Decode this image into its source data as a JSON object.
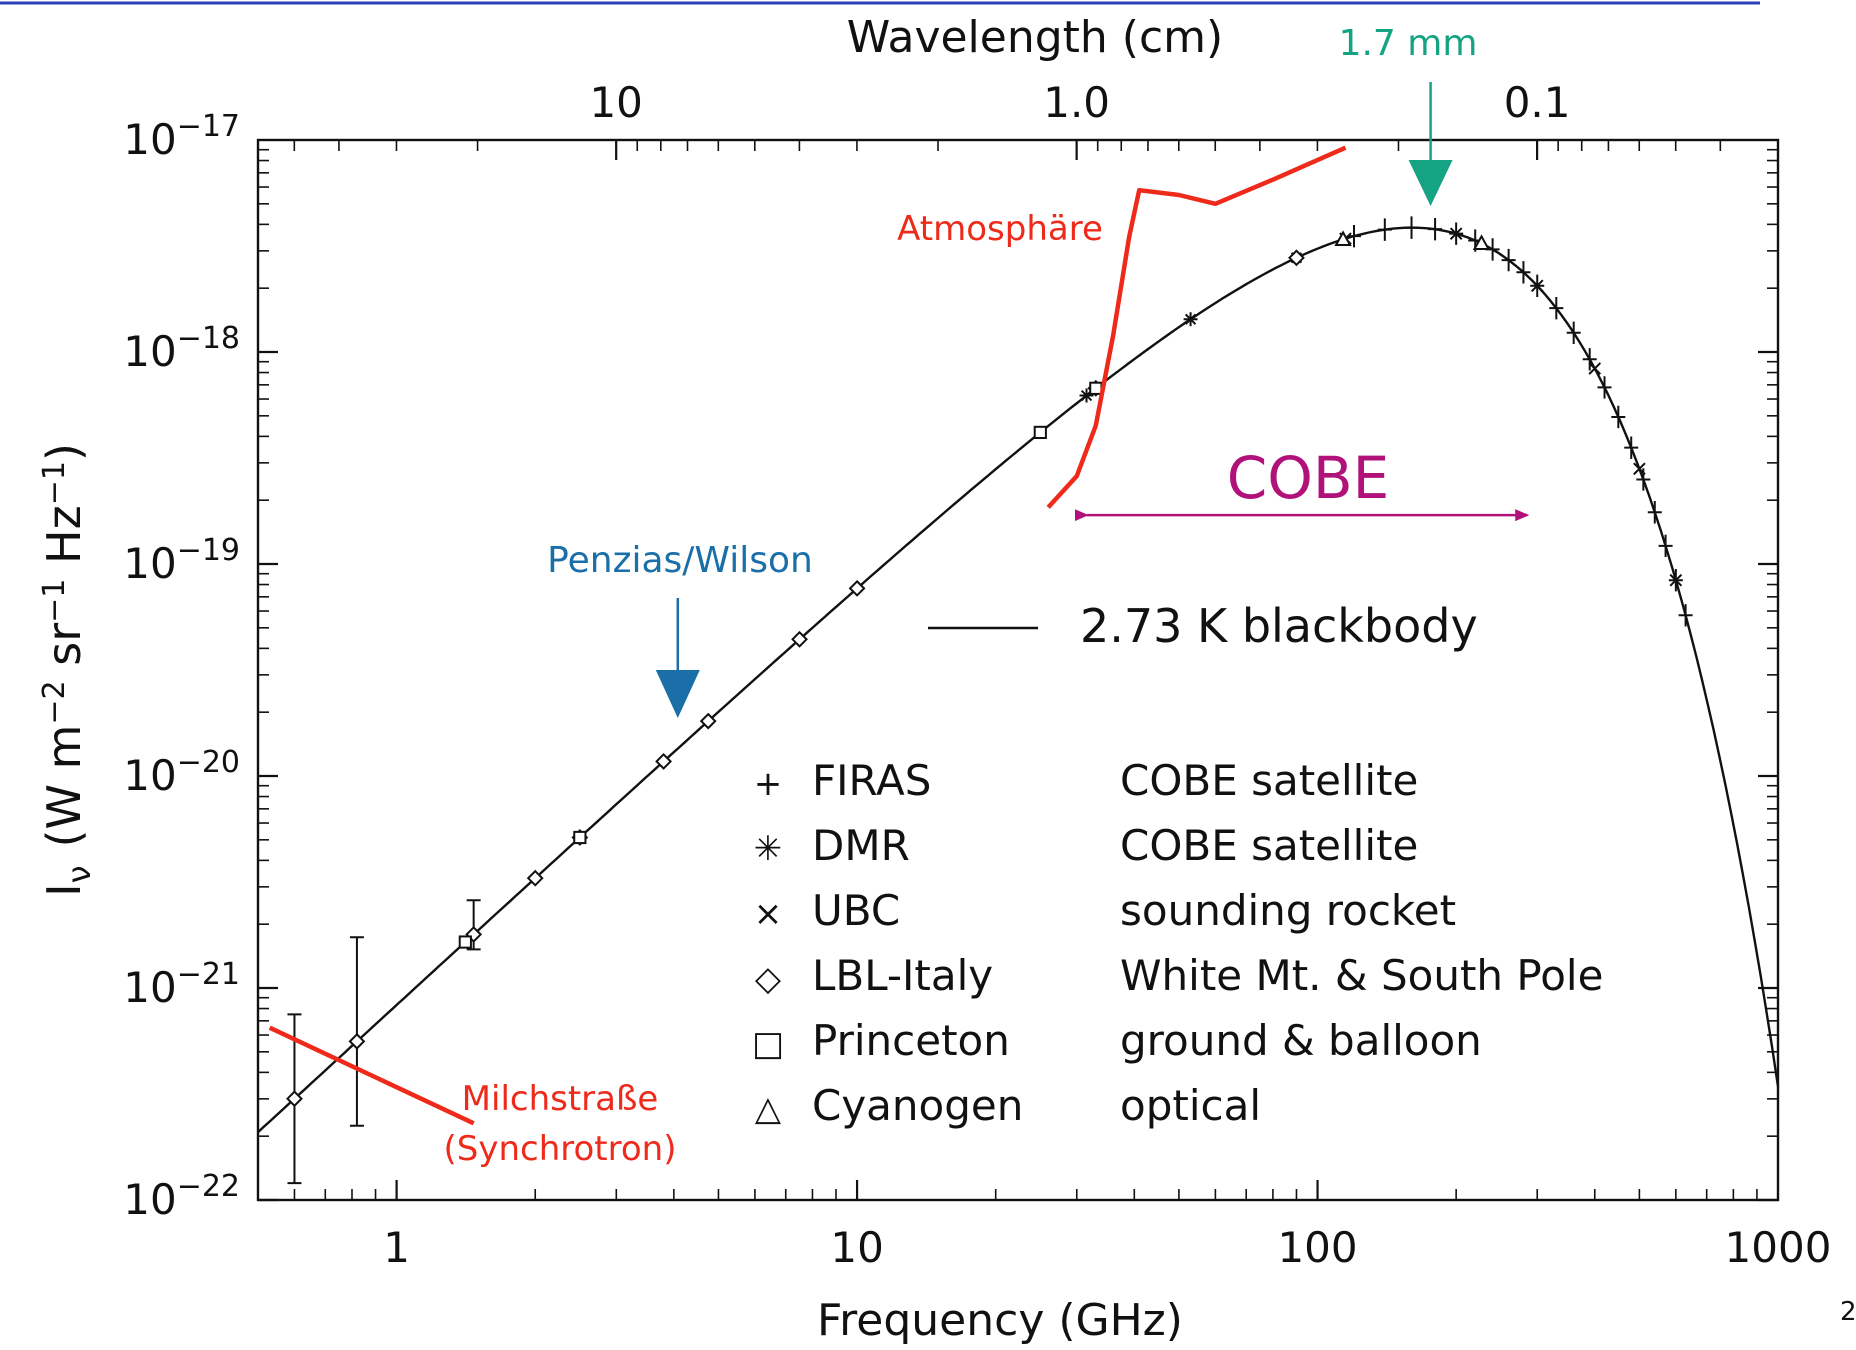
{
  "chart_data": {
    "type": "scatter",
    "xlabel": "Frequency (GHz)",
    "x2label": "Wavelength (cm)",
    "ylabel_main": "I",
    "ylabel_sub": "ν",
    "ylabel_units": "(W m",
    "x_scale": "log",
    "y_scale": "log",
    "xlim": [
      0.5,
      1000
    ],
    "ylim": [
      1e-22,
      1e-17
    ],
    "xticks": [
      {
        "value": 1,
        "label": "1"
      },
      {
        "value": 10,
        "label": "10"
      },
      {
        "value": 100,
        "label": "100"
      },
      {
        "value": 1000,
        "label": "1000"
      }
    ],
    "x2ticks": [
      {
        "wavelength_cm": 10,
        "label": "10"
      },
      {
        "wavelength_cm": 1.0,
        "label": "1.0"
      },
      {
        "wavelength_cm": 0.1,
        "label": "0.1"
      }
    ],
    "yticks": [
      {
        "value": 1e-17,
        "base": "10",
        "exp": "−17"
      },
      {
        "value": 1e-18,
        "base": "10",
        "exp": "−18"
      },
      {
        "value": 1e-19,
        "base": "10",
        "exp": "−19"
      },
      {
        "value": 1e-20,
        "base": "10",
        "exp": "−20"
      },
      {
        "value": 1e-21,
        "base": "10",
        "exp": "−21"
      },
      {
        "value": 1e-22,
        "base": "10",
        "exp": "−22"
      }
    ],
    "blackbody": {
      "label": "2.73 K  blackbody",
      "temperature_K": 2.73
    },
    "series": [
      {
        "name": "FIRAS",
        "marker": "plus",
        "x": [
          120,
          140,
          160,
          180,
          200,
          220,
          240,
          260,
          280,
          300,
          330,
          360,
          390,
          420,
          450,
          480,
          510,
          540,
          570,
          600,
          630
        ]
      },
      {
        "name": "DMR",
        "marker": "asterisk",
        "x": [
          31.5,
          53,
          90
        ]
      },
      {
        "name": "UBC",
        "marker": "x",
        "x": [
          115,
          200,
          300,
          400,
          500,
          600
        ]
      },
      {
        "name": "LBL-Italy",
        "marker": "diamond",
        "x": [
          0.6,
          0.82,
          1.47,
          2.0,
          2.5,
          3.8,
          4.75,
          7.5,
          10.0,
          33,
          90
        ],
        "error_low": [
          0.6,
          0.6,
          0.15,
          0,
          0,
          0,
          0,
          0,
          0,
          0,
          0
        ],
        "error_high": [
          0.5,
          0.7,
          0.15,
          0,
          0,
          0,
          0,
          0,
          0,
          0,
          0
        ]
      },
      {
        "name": "Princeton",
        "marker": "square",
        "x": [
          1.41,
          2.5,
          25,
          33
        ]
      },
      {
        "name": "Cyanogen",
        "marker": "triangle",
        "x": [
          113.6,
          227
        ]
      }
    ],
    "legend": [
      {
        "symbol": "+",
        "name": "FIRAS",
        "desc": "COBE satellite"
      },
      {
        "symbol": "✳",
        "name": "DMR",
        "desc": "COBE satellite"
      },
      {
        "symbol": "×",
        "name": "UBC",
        "desc": "sounding rocket"
      },
      {
        "symbol": "◇",
        "name": "LBL-Italy",
        "desc": "White Mt. & South Pole"
      },
      {
        "symbol": "□",
        "name": "Princeton",
        "desc": "ground & balloon"
      },
      {
        "symbol": "△",
        "name": "Cyanogen",
        "desc": "optical"
      }
    ],
    "annotations": {
      "atmosphere": {
        "label": "Atmosphäre",
        "color": "#ee2a1b",
        "points": [
          [
            26,
            1.85e-19
          ],
          [
            30,
            2.6e-19
          ],
          [
            33,
            4.5e-19
          ],
          [
            36,
            1.2e-18
          ],
          [
            39,
            3.5e-18
          ],
          [
            41,
            5.8e-18
          ],
          [
            50,
            5.5e-18
          ],
          [
            60,
            5e-18
          ],
          [
            80,
            6.5e-18
          ],
          [
            115,
            9.2e-18
          ]
        ]
      },
      "milkyway": {
        "label_line1": "Milchstraße",
        "label_line2": "(Synchrotron)",
        "color": "#ee2a1b",
        "points": [
          [
            0.53,
            6.5e-22
          ],
          [
            1.47,
            2.3e-22
          ]
        ]
      },
      "cobe": {
        "label": "COBE",
        "color": "#b0127a",
        "x_range": [
          30,
          300
        ],
        "y": 1.7e-19
      },
      "penzias_wilson": {
        "label": "Penzias/Wilson",
        "color": "#1b6fa8",
        "x": 4.08
      },
      "peak": {
        "label": "1.7 mm",
        "color": "#14a383",
        "x": 176
      }
    },
    "grid": false,
    "page_number": "2"
  }
}
